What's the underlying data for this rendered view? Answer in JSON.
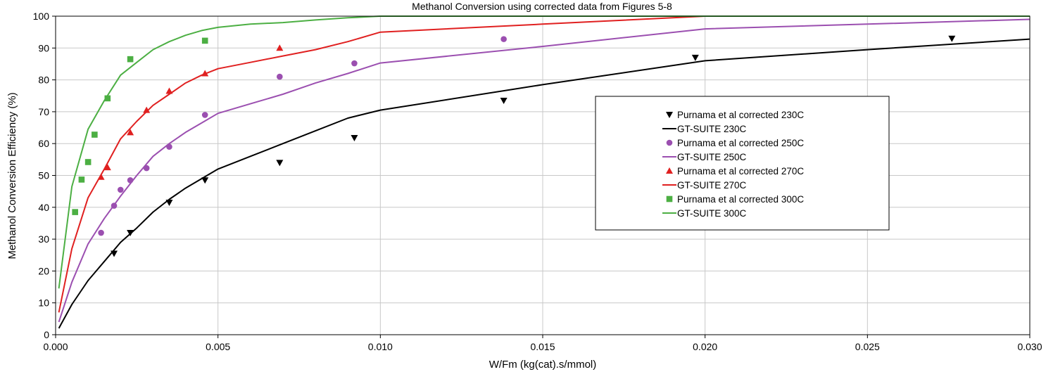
{
  "chart_data": {
    "type": "scatter",
    "title": "Methanol Conversion using corrected data from Figures 5-8",
    "xlabel": "W/Fm (kg(cat).s/mmol)",
    "ylabel": "Methanol Conversion Efficiency (%)",
    "xlim": [
      0,
      0.03
    ],
    "ylim": [
      0,
      100
    ],
    "x_ticks": [
      0,
      0.005,
      0.01,
      0.015,
      0.02,
      0.025,
      0.03
    ],
    "x_tick_labels": [
      "0.000",
      "0.005",
      "0.010",
      "0.015",
      "0.020",
      "0.025",
      "0.030"
    ],
    "y_ticks": [
      0,
      10,
      20,
      30,
      40,
      50,
      60,
      70,
      80,
      90,
      100
    ],
    "y_tick_labels": [
      "0",
      "10",
      "20",
      "30",
      "40",
      "50",
      "60",
      "70",
      "80",
      "90",
      "100"
    ],
    "grid": true,
    "legend_position": "center-right",
    "series": [
      {
        "name": "Purnama et al corrected 230C",
        "kind": "scatter",
        "marker": "triangle-down",
        "color": "#000000",
        "x": [
          0.0018,
          0.0023,
          0.0035,
          0.0046,
          0.0069,
          0.0092,
          0.0138,
          0.0197,
          0.0276
        ],
        "y": [
          25.5,
          32.0,
          41.5,
          48.5,
          54.0,
          61.8,
          73.5,
          87.0,
          93.0
        ]
      },
      {
        "name": "GT-SUITE 230C",
        "kind": "line",
        "color": "#000000",
        "x": [
          0.0001,
          0.0005,
          0.001,
          0.0015,
          0.002,
          0.0025,
          0.003,
          0.0035,
          0.004,
          0.0045,
          0.005,
          0.006,
          0.007,
          0.008,
          0.009,
          0.01,
          0.015,
          0.02,
          0.025,
          0.03
        ],
        "y": [
          2.0,
          9.5,
          17.0,
          23.0,
          29.0,
          33.5,
          38.5,
          42.5,
          46.0,
          49.0,
          52.0,
          56.0,
          60.0,
          64.0,
          68.0,
          70.5,
          78.5,
          86.0,
          89.5,
          92.8
        ]
      },
      {
        "name": "Purnama et al corrected 250C",
        "kind": "scatter",
        "marker": "circle",
        "color": "#9b4fb0",
        "x": [
          0.0014,
          0.0018,
          0.002,
          0.0023,
          0.0028,
          0.0035,
          0.0046,
          0.0069,
          0.0092,
          0.0138
        ],
        "y": [
          32.0,
          40.5,
          45.5,
          48.5,
          52.3,
          59.0,
          69.0,
          81.0,
          85.2,
          92.8
        ]
      },
      {
        "name": "GT-SUITE 250C",
        "kind": "line",
        "color": "#9b4fb0",
        "x": [
          0.0001,
          0.0005,
          0.001,
          0.0015,
          0.002,
          0.0025,
          0.003,
          0.0035,
          0.004,
          0.0045,
          0.005,
          0.006,
          0.007,
          0.008,
          0.009,
          0.01,
          0.015,
          0.02,
          0.025,
          0.03
        ],
        "y": [
          4.0,
          16.5,
          28.5,
          36.5,
          43.5,
          50.0,
          56.0,
          60.0,
          63.5,
          66.5,
          69.5,
          72.5,
          75.5,
          79.0,
          82.0,
          85.3,
          90.5,
          96.0,
          97.5,
          99.0
        ]
      },
      {
        "name": "Purnama et al corrected 270C",
        "kind": "scatter",
        "marker": "triangle-up",
        "color": "#e02020",
        "x": [
          0.0014,
          0.0016,
          0.0023,
          0.0028,
          0.0035,
          0.0046,
          0.0069
        ],
        "y": [
          49.5,
          52.5,
          63.5,
          70.5,
          76.5,
          82.0,
          90.0
        ]
      },
      {
        "name": "GT-SUITE 270C",
        "kind": "line",
        "color": "#e02020",
        "x": [
          0.0001,
          0.0005,
          0.001,
          0.0015,
          0.002,
          0.0025,
          0.003,
          0.0035,
          0.004,
          0.0045,
          0.005,
          0.006,
          0.007,
          0.008,
          0.009,
          0.01,
          0.015,
          0.02,
          0.025,
          0.03
        ],
        "y": [
          7.0,
          27.0,
          43.0,
          52.0,
          61.5,
          67.0,
          72.0,
          75.5,
          79.0,
          81.5,
          83.5,
          85.5,
          87.5,
          89.5,
          92.0,
          95.0,
          97.5,
          100.0,
          100.0,
          100.0
        ]
      },
      {
        "name": "Purnama et al corrected 300C",
        "kind": "scatter",
        "marker": "square",
        "color": "#4caf43",
        "x": [
          0.0006,
          0.0008,
          0.001,
          0.0012,
          0.0016,
          0.0023,
          0.0046
        ],
        "y": [
          38.5,
          48.7,
          54.2,
          62.8,
          74.2,
          86.5,
          92.3
        ]
      },
      {
        "name": "GT-SUITE 300C",
        "kind": "line",
        "color": "#4caf43",
        "x": [
          0.0001,
          0.0005,
          0.001,
          0.0015,
          0.002,
          0.0025,
          0.003,
          0.0035,
          0.004,
          0.0045,
          0.005,
          0.006,
          0.007,
          0.008,
          0.009,
          0.01,
          0.015,
          0.02,
          0.025,
          0.03
        ],
        "y": [
          14.5,
          46.5,
          64.5,
          73.5,
          81.5,
          85.5,
          89.5,
          92.0,
          94.0,
          95.5,
          96.5,
          97.5,
          98.0,
          98.8,
          99.5,
          100.0,
          100.0,
          100.0,
          100.0,
          100.0
        ]
      }
    ]
  }
}
